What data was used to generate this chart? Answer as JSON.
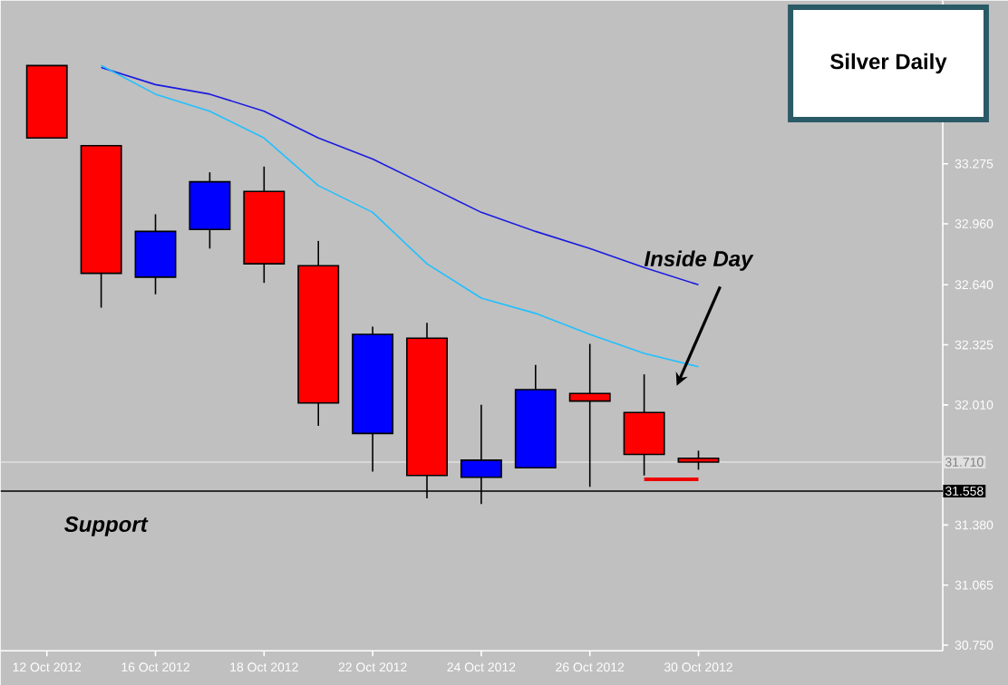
{
  "chart_data": {
    "type": "candlestick",
    "title": "Silver Daily",
    "categories": [
      "12 Oct 2012",
      null,
      "16 Oct 2012",
      null,
      "18 Oct 2012",
      null,
      "22 Oct 2012",
      null,
      "24 Oct 2012",
      null,
      "26 Oct 2012",
      null,
      "30 Oct 2012"
    ],
    "ohlc": [
      [
        33.79,
        33.79,
        33.41,
        33.41
      ],
      [
        33.37,
        33.37,
        32.52,
        32.7
      ],
      [
        32.68,
        33.01,
        32.59,
        32.92
      ],
      [
        32.93,
        33.23,
        32.83,
        33.18
      ],
      [
        33.13,
        33.26,
        32.65,
        32.75
      ],
      [
        32.74,
        32.87,
        31.9,
        32.02
      ],
      [
        31.86,
        32.42,
        31.66,
        32.38
      ],
      [
        32.36,
        32.44,
        31.52,
        31.64
      ],
      [
        31.63,
        32.01,
        31.49,
        31.72
      ],
      [
        31.68,
        32.22,
        31.68,
        32.09
      ],
      [
        32.07,
        32.33,
        31.58,
        32.03
      ],
      [
        31.97,
        32.17,
        31.64,
        31.75
      ],
      [
        31.73,
        31.77,
        31.67,
        31.71
      ]
    ],
    "colors": [
      "#ff0000",
      "#ff0000",
      "#0000ff",
      "#0000ff",
      "#ff0000",
      "#ff0000",
      "#0000ff",
      "#ff0000",
      "#0000ff",
      "#0000ff",
      "#ff0000",
      "#ff0000",
      "#ff0000"
    ],
    "series": [
      {
        "type": "line",
        "color": "#1a1ae0",
        "values": [
          null,
          33.78,
          33.69,
          33.64,
          33.55,
          33.41,
          33.3,
          33.16,
          33.02,
          32.92,
          32.83,
          32.73,
          32.64
        ]
      },
      {
        "type": "line",
        "color": "#20c0ff",
        "values": [
          null,
          33.79,
          33.64,
          33.55,
          33.41,
          33.16,
          33.02,
          32.75,
          32.57,
          32.49,
          32.38,
          32.28,
          32.21
        ]
      },
      {
        "type": "line",
        "color": "#ee0000",
        "values": [
          null,
          null,
          null,
          null,
          null,
          null,
          null,
          null,
          null,
          null,
          null,
          31.62,
          31.62
        ]
      }
    ],
    "ylim": [
      30.72,
      34.13
    ],
    "yticks": [
      {
        "value": 30.75,
        "label": "30.750"
      },
      {
        "value": 31.065,
        "label": "31.065"
      },
      {
        "value": 31.38,
        "label": "31.380"
      },
      {
        "value": 32.01,
        "label": "32.010"
      },
      {
        "value": 32.325,
        "label": "32.325"
      },
      {
        "value": 32.64,
        "label": "32.640"
      },
      {
        "value": 32.96,
        "label": "32.960"
      },
      {
        "value": 33.275,
        "label": "33.275"
      }
    ],
    "ref_lines": [
      {
        "axis": "y",
        "value": 31.558,
        "label": "31.558",
        "color": "#000000"
      },
      {
        "axis": "y",
        "value": 31.71,
        "label": "31.710",
        "color": "#e0e0e0"
      }
    ],
    "annotations": [
      "Inside Day",
      "Support"
    ]
  }
}
